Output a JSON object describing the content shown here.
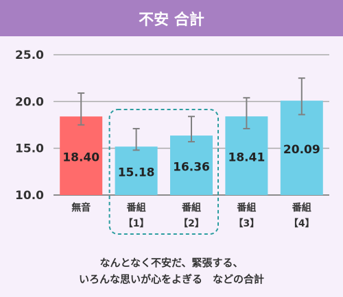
{
  "title": "不安 合計",
  "chart_data": {
    "type": "bar",
    "title": "不安 合計",
    "categories": [
      {
        "line1": "無音",
        "line2": ""
      },
      {
        "line1": "番組",
        "line2": "【1】"
      },
      {
        "line1": "番組",
        "line2": "【2】"
      },
      {
        "line1": "番組",
        "line2": "【3】"
      },
      {
        "line1": "番組",
        "line2": "【4】"
      }
    ],
    "values": [
      18.4,
      15.18,
      16.36,
      18.41,
      20.09
    ],
    "value_labels": [
      "18.40",
      "15.18",
      "16.36",
      "18.41",
      "20.09"
    ],
    "error_low": [
      17.5,
      14.8,
      15.7,
      17.1,
      18.6
    ],
    "error_high": [
      20.9,
      17.1,
      18.4,
      20.4,
      22.5
    ],
    "ylim": [
      10.0,
      25.0
    ],
    "yticks": [
      "10.0",
      "15.0",
      "20.0",
      "25.0"
    ],
    "ytick_values": [
      10,
      15,
      20,
      25
    ],
    "grid": true,
    "colors": {
      "baseline": "#ff6b6b",
      "program": "#6ecfe8",
      "error": "#808080",
      "highlight": "#2a9d9f",
      "grid": "#aaaaaa",
      "axis": "#8a8a8a"
    },
    "highlighted_categories": [
      1,
      2
    ]
  },
  "caption": [
    "なんとなく不安だ、緊張する、",
    "いろんな思いが心をよぎる　などの合計"
  ]
}
